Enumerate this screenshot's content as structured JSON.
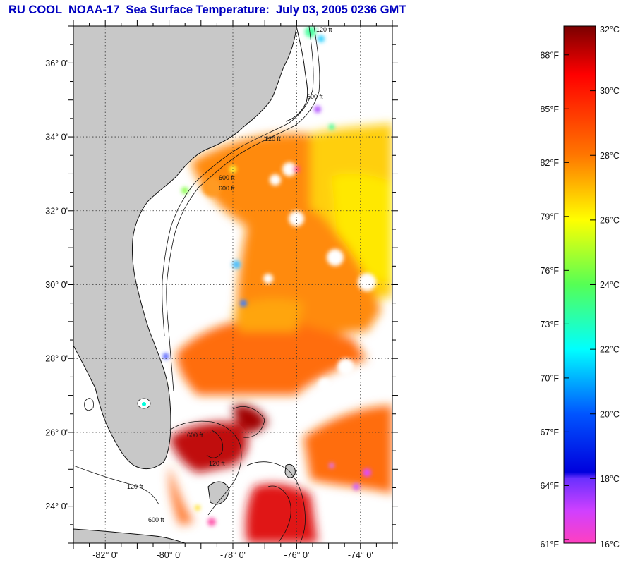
{
  "title": "RU COOL  NOAA-17  Sea Surface Temperature:  July 03, 2005 0236 GMT",
  "map": {
    "lon_range": [
      -83,
      -73
    ],
    "lat_range": [
      23,
      37
    ],
    "lon_ticks": [
      {
        "value": -82,
        "label": "-82° 0'"
      },
      {
        "value": -80,
        "label": "-80° 0'"
      },
      {
        "value": -78,
        "label": "-78° 0'"
      },
      {
        "value": -76,
        "label": "-76° 0'"
      },
      {
        "value": -74,
        "label": "-74° 0'"
      }
    ],
    "lat_ticks": [
      {
        "value": 24,
        "label": "24° 0'"
      },
      {
        "value": 26,
        "label": "26° 0'"
      },
      {
        "value": 28,
        "label": "28° 0'"
      },
      {
        "value": 30,
        "label": "30° 0'"
      },
      {
        "value": 32,
        "label": "32° 0'"
      },
      {
        "value": 34,
        "label": "34° 0'"
      },
      {
        "value": 36,
        "label": "36° 0'"
      }
    ],
    "contour_labels": [
      "120 ft",
      "600 ft",
      "120 ft",
      "600 ft",
      "600 ft",
      "120 ft",
      "600 ft",
      "120 ft",
      "600 ft"
    ],
    "land_color": "#c8c8c8",
    "cloud_color": "#ffffff",
    "grid": true
  },
  "colorbar": {
    "range_c": [
      16,
      32
    ],
    "celsius_ticks": [
      {
        "value": 32,
        "label": "32°C"
      },
      {
        "value": 30,
        "label": "30°C"
      },
      {
        "value": 28,
        "label": "28°C"
      },
      {
        "value": 26,
        "label": "26°C"
      },
      {
        "value": 24,
        "label": "24°C"
      },
      {
        "value": 22,
        "label": "22°C"
      },
      {
        "value": 20,
        "label": "20°C"
      },
      {
        "value": 18,
        "label": "18°C"
      },
      {
        "value": 16,
        "label": "16°C"
      }
    ],
    "fahrenheit_ticks": [
      {
        "value_c": 31.11,
        "label": "88°F"
      },
      {
        "value_c": 29.44,
        "label": "85°F"
      },
      {
        "value_c": 27.78,
        "label": "82°F"
      },
      {
        "value_c": 26.11,
        "label": "79°F"
      },
      {
        "value_c": 24.44,
        "label": "76°F"
      },
      {
        "value_c": 22.78,
        "label": "73°F"
      },
      {
        "value_c": 21.11,
        "label": "70°F"
      },
      {
        "value_c": 19.44,
        "label": "67°F"
      },
      {
        "value_c": 17.78,
        "label": "64°F"
      },
      {
        "value_c": 16.11,
        "label": "61°F"
      }
    ],
    "gradient_stops": [
      {
        "c": 32,
        "color": "#7a0000"
      },
      {
        "c": 30.5,
        "color": "#ff0000"
      },
      {
        "c": 28,
        "color": "#ff7700"
      },
      {
        "c": 26,
        "color": "#ffff00"
      },
      {
        "c": 24,
        "color": "#55ff55"
      },
      {
        "c": 22,
        "color": "#00ffff"
      },
      {
        "c": 20,
        "color": "#0055ff"
      },
      {
        "c": 18.2,
        "color": "#0000dd"
      },
      {
        "c": 18,
        "color": "#6a30ff"
      },
      {
        "c": 17,
        "color": "#d040ff"
      },
      {
        "c": 16,
        "color": "#ff40c0"
      }
    ]
  }
}
